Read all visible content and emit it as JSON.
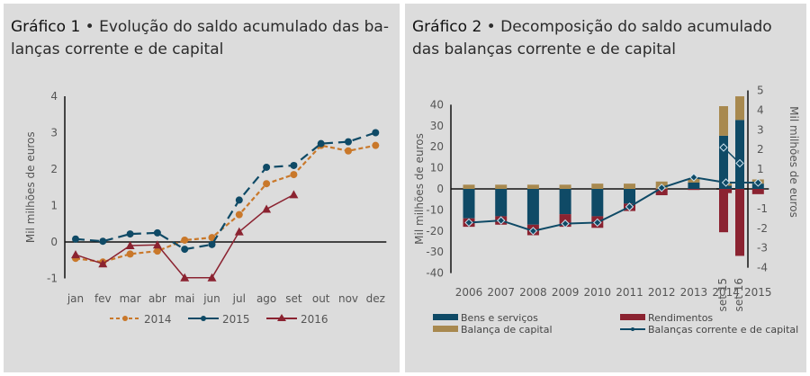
{
  "chart_data": [
    {
      "type": "line",
      "title_label": "Gráfico 1",
      "title": "Evolução do saldo acumulado das balanças corrente e de capital",
      "title_line1": "Evolução do saldo acumulado das ba-",
      "title_line2": "lanças corrente e de capital",
      "ylabel": "Mil milhões de euros",
      "ylim": [
        -1,
        4
      ],
      "yticks": [
        "4",
        "3",
        "2",
        "1",
        "0",
        "-1"
      ],
      "categories": [
        "jan",
        "fev",
        "mar",
        "abr",
        "mai",
        "jun",
        "jul",
        "ago",
        "set",
        "out",
        "nov",
        "dez"
      ],
      "legend_position": "bottom",
      "series": [
        {
          "name": "2014",
          "color": "#c9782a",
          "values": [
            -0.45,
            -0.55,
            -0.33,
            -0.25,
            0.05,
            0.12,
            0.75,
            1.6,
            1.85,
            2.65,
            2.5,
            2.65
          ]
        },
        {
          "name": "2015",
          "color": "#0f4a66",
          "values": [
            0.08,
            0.02,
            0.22,
            0.25,
            -0.2,
            -0.07,
            1.15,
            2.05,
            2.1,
            2.7,
            2.75,
            3.0
          ]
        },
        {
          "name": "2016",
          "color": "#8b2331",
          "values": [
            -0.35,
            -0.6,
            -0.1,
            -0.08,
            -0.98,
            -0.98,
            0.28,
            0.9,
            1.3
          ]
        }
      ]
    },
    {
      "type": "bar",
      "title_label": "Gráfico 2",
      "title": "Decomposição do saldo acumulado das balanças corrente e de capital",
      "title_line1": "Decomposição do saldo acumulado",
      "title_line2": "das balanças corrente e de capital",
      "ylabel": "Mil milhões de euros",
      "ylabel_right": "Mil milhões de euros",
      "ylim": [
        -40,
        40
      ],
      "ylim_right": [
        -4,
        5
      ],
      "yticks": [
        "40",
        "30",
        "20",
        "10",
        "0",
        "-10",
        "-20",
        "-30",
        "-40"
      ],
      "yticks_right": [
        "5",
        "4",
        "3",
        "2",
        "1",
        "0",
        "-1",
        "-2",
        "-3",
        "-4"
      ],
      "categories": [
        "2006",
        "2007",
        "2008",
        "2009",
        "2010",
        "2011",
        "2012",
        "2013",
        "2014",
        "2015"
      ],
      "categories_right": [
        "set 15",
        "set 16"
      ],
      "legend_position": "bottom",
      "series": [
        {
          "name": "Bens e serviços",
          "color": "#0f4a66",
          "values": [
            -14,
            -13,
            -17,
            -12,
            -13,
            -7,
            0,
            3,
            1.5,
            2.5
          ],
          "values_right": [
            2.7,
            3.5
          ]
        },
        {
          "name": "Rendimentos",
          "color": "#8b2331",
          "values": [
            -4,
            -4,
            -5,
            -6,
            -5.5,
            -3.5,
            -3,
            -0.5,
            -2,
            -2.5
          ],
          "values_right": [
            -2.2,
            -3.4
          ]
        },
        {
          "name": "Balança de capital",
          "color": "#a8894f",
          "values": [
            2,
            2,
            2,
            2,
            2.5,
            2.5,
            3.5,
            2,
            2,
            2
          ],
          "values_right": [
            1.5,
            1.2
          ]
        },
        {
          "name": "Balanças corrente e de capital",
          "color": "#0f4a66",
          "type": "line",
          "values": [
            -16,
            -15,
            -20,
            -16.5,
            -16,
            -8.5,
            0.5,
            5.5,
            3,
            3
          ],
          "values_right": [
            2.1,
            1.3
          ]
        }
      ]
    }
  ]
}
